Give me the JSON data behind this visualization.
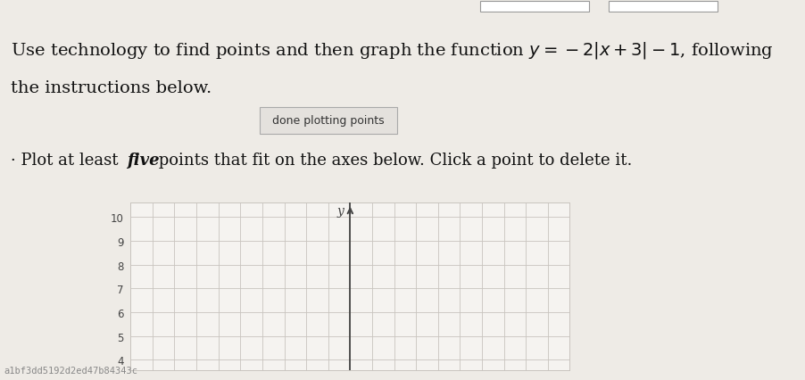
{
  "button_text": "done plotting points",
  "watermark": "a1bf3dd5192d2ed47b84343c",
  "background_color": "#eeebe6",
  "grid_bg": "#f5f3f0",
  "grid_color": "#c8c4be",
  "axis_color": "#444444",
  "y_label": "y",
  "y_ticks": [
    4,
    5,
    6,
    7,
    8,
    9,
    10
  ],
  "y_min": 3.55,
  "y_max": 10.6,
  "x_min": -10,
  "x_max": 10,
  "title_fontsize": 14,
  "instruction_fontsize": 13,
  "button_fontsize": 9,
  "top_bar_color": "#cbc7c2",
  "title_color": "#111111",
  "watermark_bg": "#1a1a1a",
  "watermark_color": "#888888",
  "box_edge_color": "#bbbbbb",
  "box_face_color": "#e8e5e0"
}
